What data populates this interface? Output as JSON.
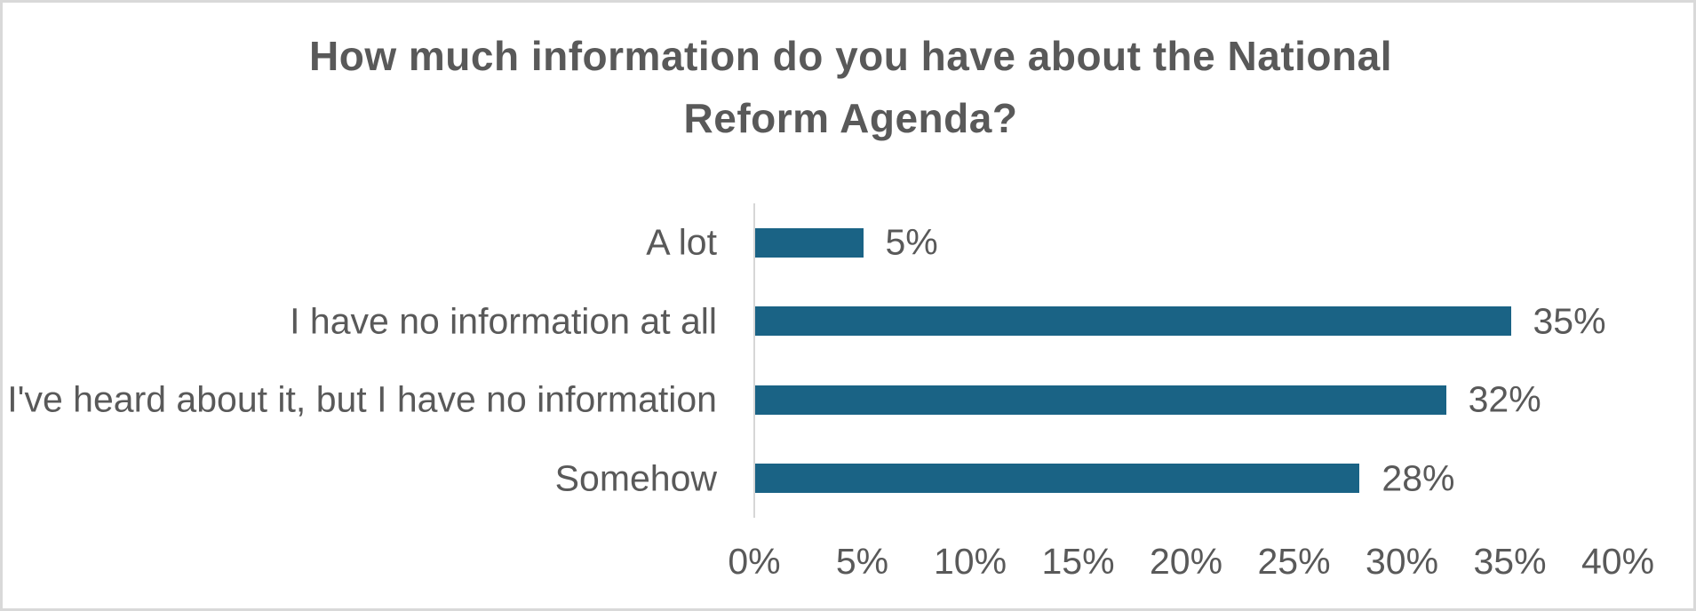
{
  "chart_data": {
    "type": "bar",
    "orientation": "horizontal",
    "title": "How much information do you have about the National Reform Agenda?",
    "title_line1": "How much information do you have about the National",
    "title_line2": "Reform Agenda?",
    "categories": [
      "A lot",
      "I have no information at all",
      "I've heard about it, but I have no information",
      "Somehow"
    ],
    "values": [
      5,
      35,
      32,
      28
    ],
    "data_labels": [
      "5%",
      "35%",
      "32%",
      "28%"
    ],
    "x_ticks": [
      "0%",
      "5%",
      "10%",
      "15%",
      "20%",
      "25%",
      "30%",
      "35%",
      "40%"
    ],
    "x_tick_values": [
      0,
      5,
      10,
      15,
      20,
      25,
      30,
      35,
      40
    ],
    "xlim": [
      0,
      40
    ],
    "xlabel": "",
    "ylabel": "",
    "grid": false,
    "legend": false,
    "bar_color": "#1A6385",
    "text_color": "#595959",
    "axis_line_color": "#D6D6D6",
    "border_color": "#D9D9D9"
  }
}
